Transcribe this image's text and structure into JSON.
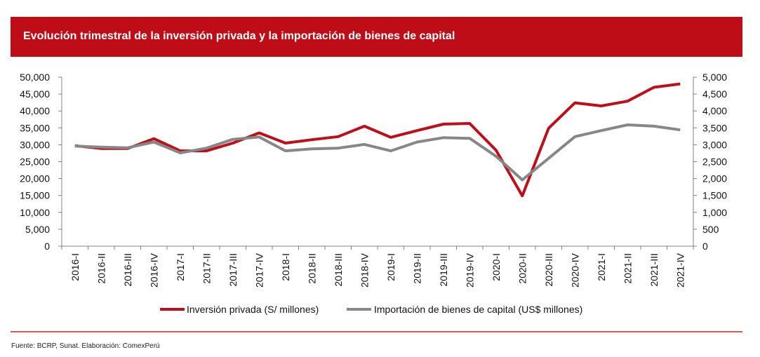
{
  "header": {
    "title": "Evolución trimestral de la inversión privada y la importación de bienes de capital"
  },
  "footer": {
    "source": "Fuente: BCRP, Sunat. Elaboración: ComexPerú"
  },
  "colors": {
    "brand": "#bf0d18",
    "series_red": "#c00d1a",
    "series_gray": "#878787",
    "axis": "#808080"
  },
  "chart_data": {
    "type": "line",
    "title": "Evolución trimestral de la inversión privada y la importación de bienes de capital",
    "xlabel": "",
    "categories": [
      "2016-I",
      "2016-II",
      "2016-III",
      "2016-IV",
      "2017-I",
      "2017-II",
      "2017-III",
      "2017-IV",
      "2018-I",
      "2018-II",
      "2018-III",
      "2018-IV",
      "2019-I",
      "2019-II",
      "2019-III",
      "2019-IV",
      "2020-I",
      "2020-II",
      "2020-III",
      "2020-IV",
      "2021-I",
      "2021-II",
      "2021-III",
      "2021-IV"
    ],
    "y_left": {
      "ylim": [
        0,
        50000
      ],
      "ticks": [
        0,
        5000,
        10000,
        15000,
        20000,
        25000,
        30000,
        35000,
        40000,
        45000,
        50000
      ],
      "tick_labels": [
        "0",
        "5,000",
        "10,000",
        "15,000",
        "20,000",
        "25,000",
        "30,000",
        "35,000",
        "40,000",
        "45,000",
        "50,000"
      ]
    },
    "y_right": {
      "ylim": [
        0,
        5000
      ],
      "ticks": [
        0,
        500,
        1000,
        1500,
        2000,
        2500,
        3000,
        3500,
        4000,
        4500,
        5000
      ],
      "tick_labels": [
        "0",
        "500",
        "1,000",
        "1,500",
        "2,000",
        "2,500",
        "3,000",
        "3,500",
        "4,000",
        "4,500",
        "5,000"
      ]
    },
    "grid": false,
    "legend_position": "bottom",
    "series": [
      {
        "name": "Inversión privada (S/ millones)",
        "axis": "left",
        "color": "#c00d1a",
        "values": [
          29700,
          28900,
          28900,
          31800,
          28200,
          28200,
          30500,
          33500,
          30500,
          31500,
          32400,
          35500,
          32200,
          34200,
          36100,
          36300,
          28400,
          14900,
          34900,
          42400,
          41500,
          42900,
          47000,
          48000
        ]
      },
      {
        "name": "Importación de bienes de capital (US$ millones)",
        "axis": "right",
        "color": "#878787",
        "values": [
          2960,
          2930,
          2910,
          3080,
          2760,
          2900,
          3160,
          3230,
          2820,
          2880,
          2900,
          3010,
          2820,
          3080,
          3210,
          3190,
          2660,
          1960,
          2600,
          3240,
          3420,
          3590,
          3550,
          3440
        ]
      }
    ]
  }
}
